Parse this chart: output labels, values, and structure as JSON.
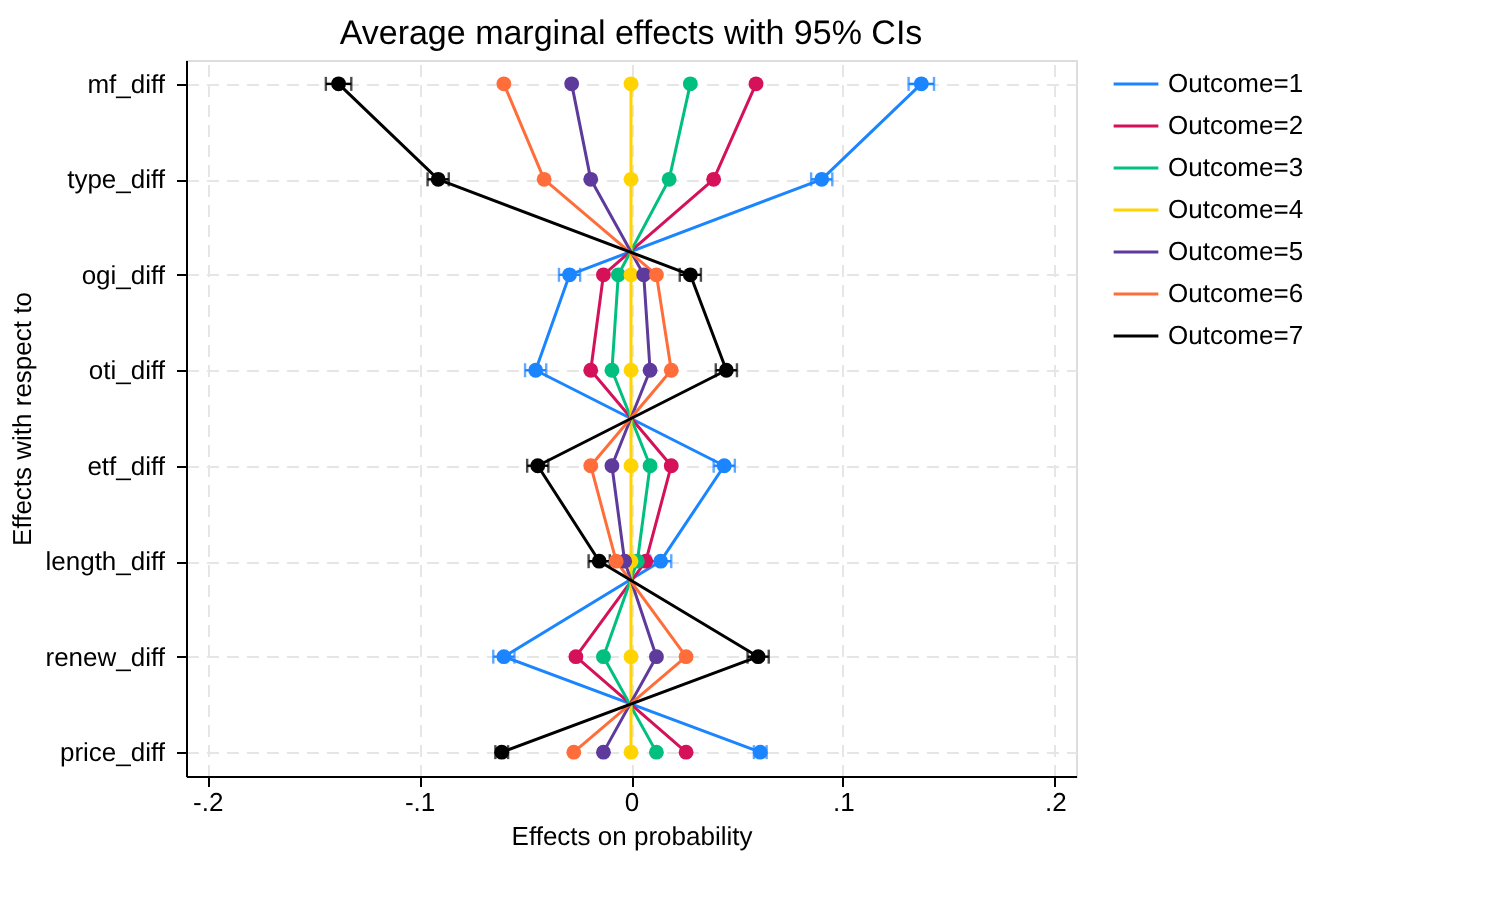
{
  "chart_data": {
    "type": "line",
    "title": "Average marginal effects with 95% CIs",
    "xlabel": "Effects on probability",
    "ylabel": "Effects with respect to",
    "orientation": "horizontal",
    "categories": [
      "mf_diff",
      "type_diff",
      "ogi_diff",
      "oti_diff",
      "etf_diff",
      "length_diff",
      "renew_diff",
      "price_diff"
    ],
    "xlim": [
      -0.21,
      0.21
    ],
    "xticks": [
      {
        "value": -0.2,
        "label": "-.2"
      },
      {
        "value": -0.1,
        "label": "-.1"
      },
      {
        "value": 0,
        "label": "0"
      },
      {
        "value": 0.1,
        "label": ".1"
      },
      {
        "value": 0.2,
        "label": ".2"
      }
    ],
    "grid": true,
    "legend": "right",
    "marker": "circle",
    "line_style": "solid",
    "series": [
      {
        "name": "Outcome=1",
        "color": "#1a85ff",
        "values": [
          0.137,
          0.09,
          -0.029,
          -0.045,
          0.044,
          0.014,
          -0.06,
          0.061
        ],
        "errors": [
          0.006,
          0.005,
          0.005,
          0.005,
          0.005,
          0.005,
          0.005,
          0.003
        ]
      },
      {
        "name": "Outcome=2",
        "color": "#d41159",
        "values": [
          0.059,
          0.039,
          -0.013,
          -0.019,
          0.019,
          0.007,
          -0.026,
          0.026
        ]
      },
      {
        "name": "Outcome=3",
        "color": "#00bf7f",
        "values": [
          0.028,
          0.018,
          -0.006,
          -0.009,
          0.009,
          0.003,
          -0.013,
          0.012
        ]
      },
      {
        "name": "Outcome=4",
        "color": "#ffd400",
        "values": [
          0.0,
          0.0,
          0.0,
          0.0,
          0.0,
          0.0,
          0.0,
          0.0
        ]
      },
      {
        "name": "Outcome=5",
        "color": "#5d3a9b",
        "values": [
          -0.028,
          -0.019,
          0.006,
          0.009,
          -0.009,
          -0.003,
          0.012,
          -0.013
        ]
      },
      {
        "name": "Outcome=6",
        "color": "#ff6e3a",
        "values": [
          -0.06,
          -0.041,
          0.012,
          0.019,
          -0.019,
          -0.007,
          0.026,
          -0.027
        ]
      },
      {
        "name": "Outcome=7",
        "color": "#000000",
        "values": [
          -0.138,
          -0.091,
          0.028,
          0.045,
          -0.044,
          -0.015,
          0.06,
          -0.061
        ],
        "errors": [
          0.006,
          0.005,
          0.005,
          0.005,
          0.005,
          0.005,
          0.005,
          0.003
        ]
      }
    ]
  }
}
